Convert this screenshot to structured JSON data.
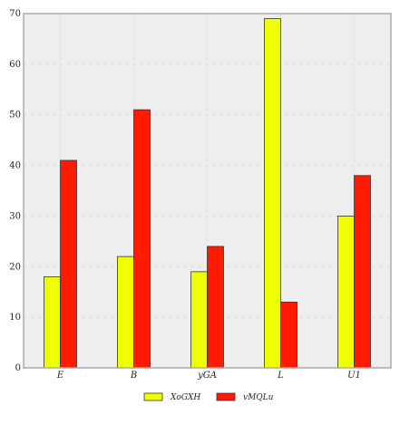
{
  "chart_data": {
    "type": "bar",
    "categories": [
      "E",
      "B",
      "yGA",
      "L",
      "U1"
    ],
    "series": [
      {
        "name": "XoGXH",
        "values": [
          18,
          22,
          19,
          69,
          30
        ],
        "color": "#f0ff00"
      },
      {
        "name": "vMQLu",
        "values": [
          41,
          51,
          24,
          13,
          38
        ],
        "color": "#ff1a00"
      }
    ],
    "ylim": [
      0,
      70
    ],
    "yticks": [
      0,
      10,
      20,
      30,
      40,
      50,
      60,
      70
    ],
    "grid": true,
    "legend_position": "bottom",
    "title": "",
    "xlabel": "",
    "ylabel": ""
  }
}
